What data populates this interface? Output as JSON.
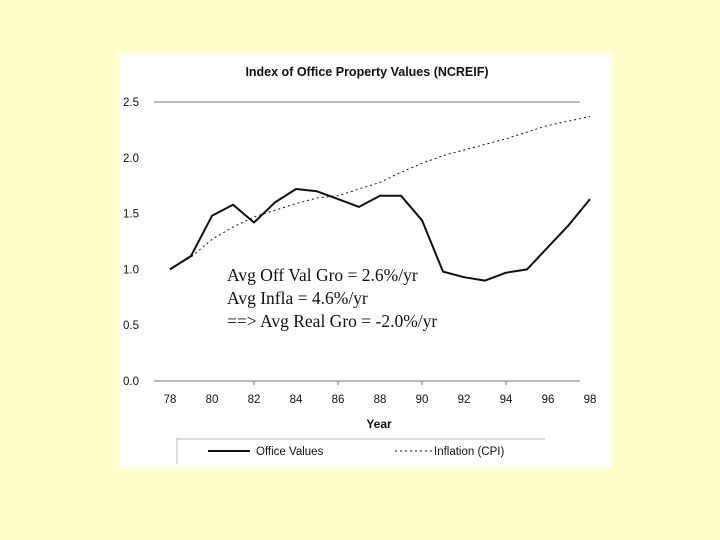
{
  "chart_data": {
    "type": "line",
    "title": "Index of Office Property Values (NCREIF)",
    "xlabel": "Year",
    "ylabel": "",
    "ylim": [
      0,
      2.5
    ],
    "yticks": [
      "0.0",
      "0.5",
      "1.0",
      "1.5",
      "2.0",
      "2.5"
    ],
    "x": [
      78,
      79,
      80,
      81,
      82,
      83,
      84,
      85,
      86,
      87,
      88,
      89,
      90,
      91,
      92,
      93,
      94,
      95,
      96,
      97,
      98
    ],
    "xtick_labels": [
      "78",
      "80",
      "82",
      "84",
      "86",
      "88",
      "90",
      "92",
      "94",
      "96",
      "98"
    ],
    "series": [
      {
        "name": "Office Values",
        "style": "solid",
        "values": [
          1.0,
          1.12,
          1.48,
          1.58,
          1.42,
          1.6,
          1.72,
          1.7,
          1.63,
          1.56,
          1.66,
          1.66,
          1.44,
          0.98,
          0.93,
          0.9,
          0.97,
          1.0,
          1.2,
          1.4,
          1.63
        ]
      },
      {
        "name": "Inflation (CPI)",
        "style": "dotted",
        "values": [
          1.0,
          1.11,
          1.27,
          1.38,
          1.47,
          1.53,
          1.59,
          1.64,
          1.66,
          1.72,
          1.78,
          1.87,
          1.95,
          2.02,
          2.07,
          2.12,
          2.17,
          2.23,
          2.29,
          2.33,
          2.37
        ]
      }
    ],
    "annotations": [
      "Avg Off Val Gro = 2.6%/yr",
      "Avg Infla = 4.6%/yr",
      "==> Avg Real Gro = -2.0%/yr"
    ],
    "legend_position": "bottom"
  },
  "colors": {
    "background": "#ffffcc",
    "panel": "#ffffff",
    "line": "#111111"
  }
}
